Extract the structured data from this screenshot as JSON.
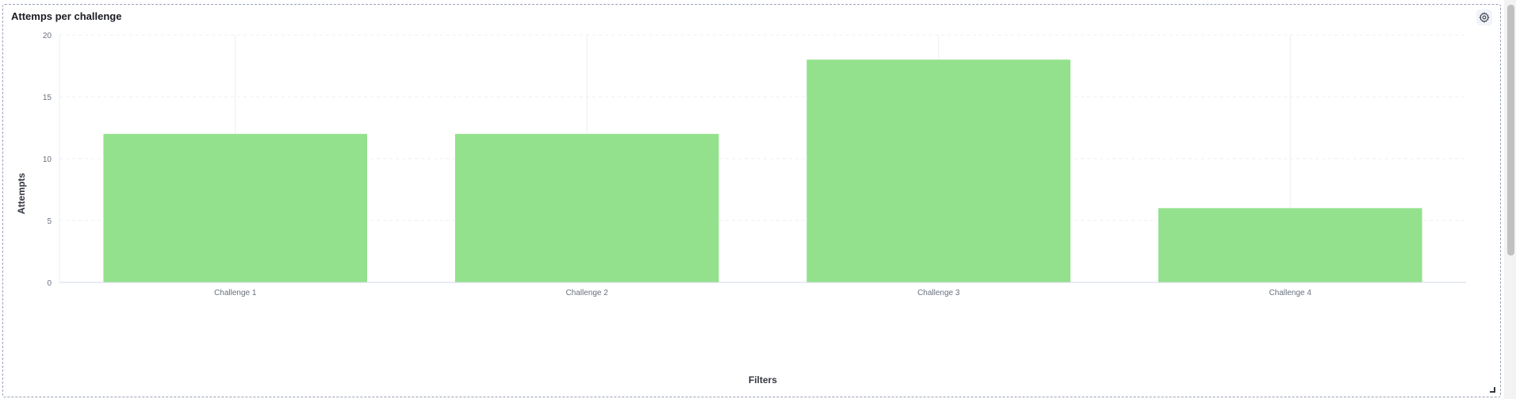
{
  "panel": {
    "title": "Attemps per challenge",
    "settings_icon": "gear-icon",
    "resize_icon": "resize-handle-icon"
  },
  "colors": {
    "bar": "#93e18c",
    "grid": "#eceff5",
    "axis": "#d3dae6",
    "tick_text": "#69707d",
    "label_text": "#343741"
  },
  "chart_data": {
    "type": "bar",
    "categories": [
      "Challenge 1",
      "Challenge 2",
      "Challenge 3",
      "Challenge 4"
    ],
    "values": [
      12,
      12,
      18,
      6
    ],
    "title": "",
    "xlabel": "Filters",
    "ylabel": "Attempts",
    "ylim": [
      0,
      20
    ],
    "yticks": [
      0,
      5,
      10,
      15,
      20
    ],
    "grid": true,
    "legend": "none"
  }
}
